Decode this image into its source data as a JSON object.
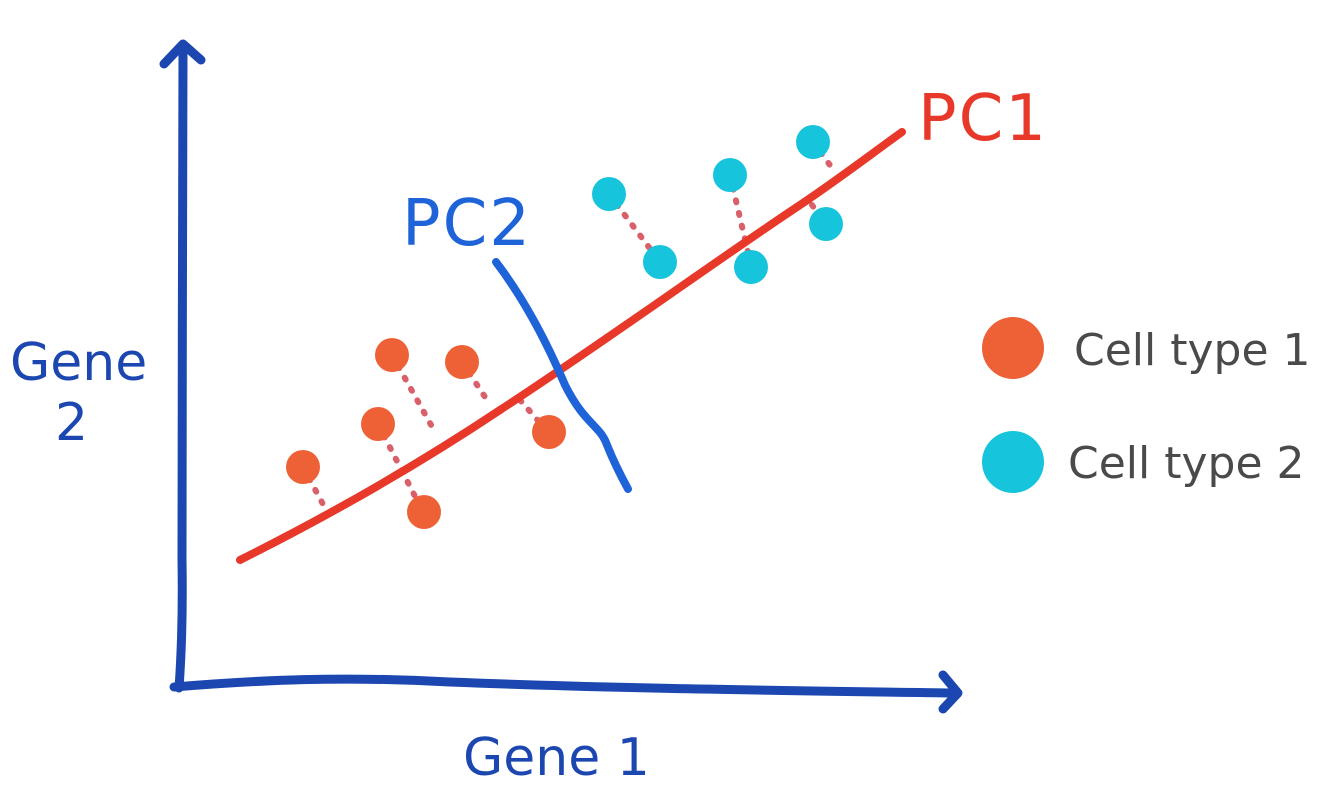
{
  "axes": {
    "x_label": "Gene 1",
    "y_label_line1": "Gene",
    "y_label_line2": "2"
  },
  "components": {
    "pc1_label": "PC1",
    "pc2_label": "PC2"
  },
  "legend": [
    {
      "label": "Cell type 1",
      "color": "#ee6035"
    },
    {
      "label": "Cell type 2",
      "color": "#16c4dc"
    }
  ],
  "colors": {
    "axis": "#1d47b0",
    "pc1": "#e8382a",
    "pc2": "#1e63d8",
    "projection": "#d9606a",
    "legend_text": "#4a4a4a"
  }
}
